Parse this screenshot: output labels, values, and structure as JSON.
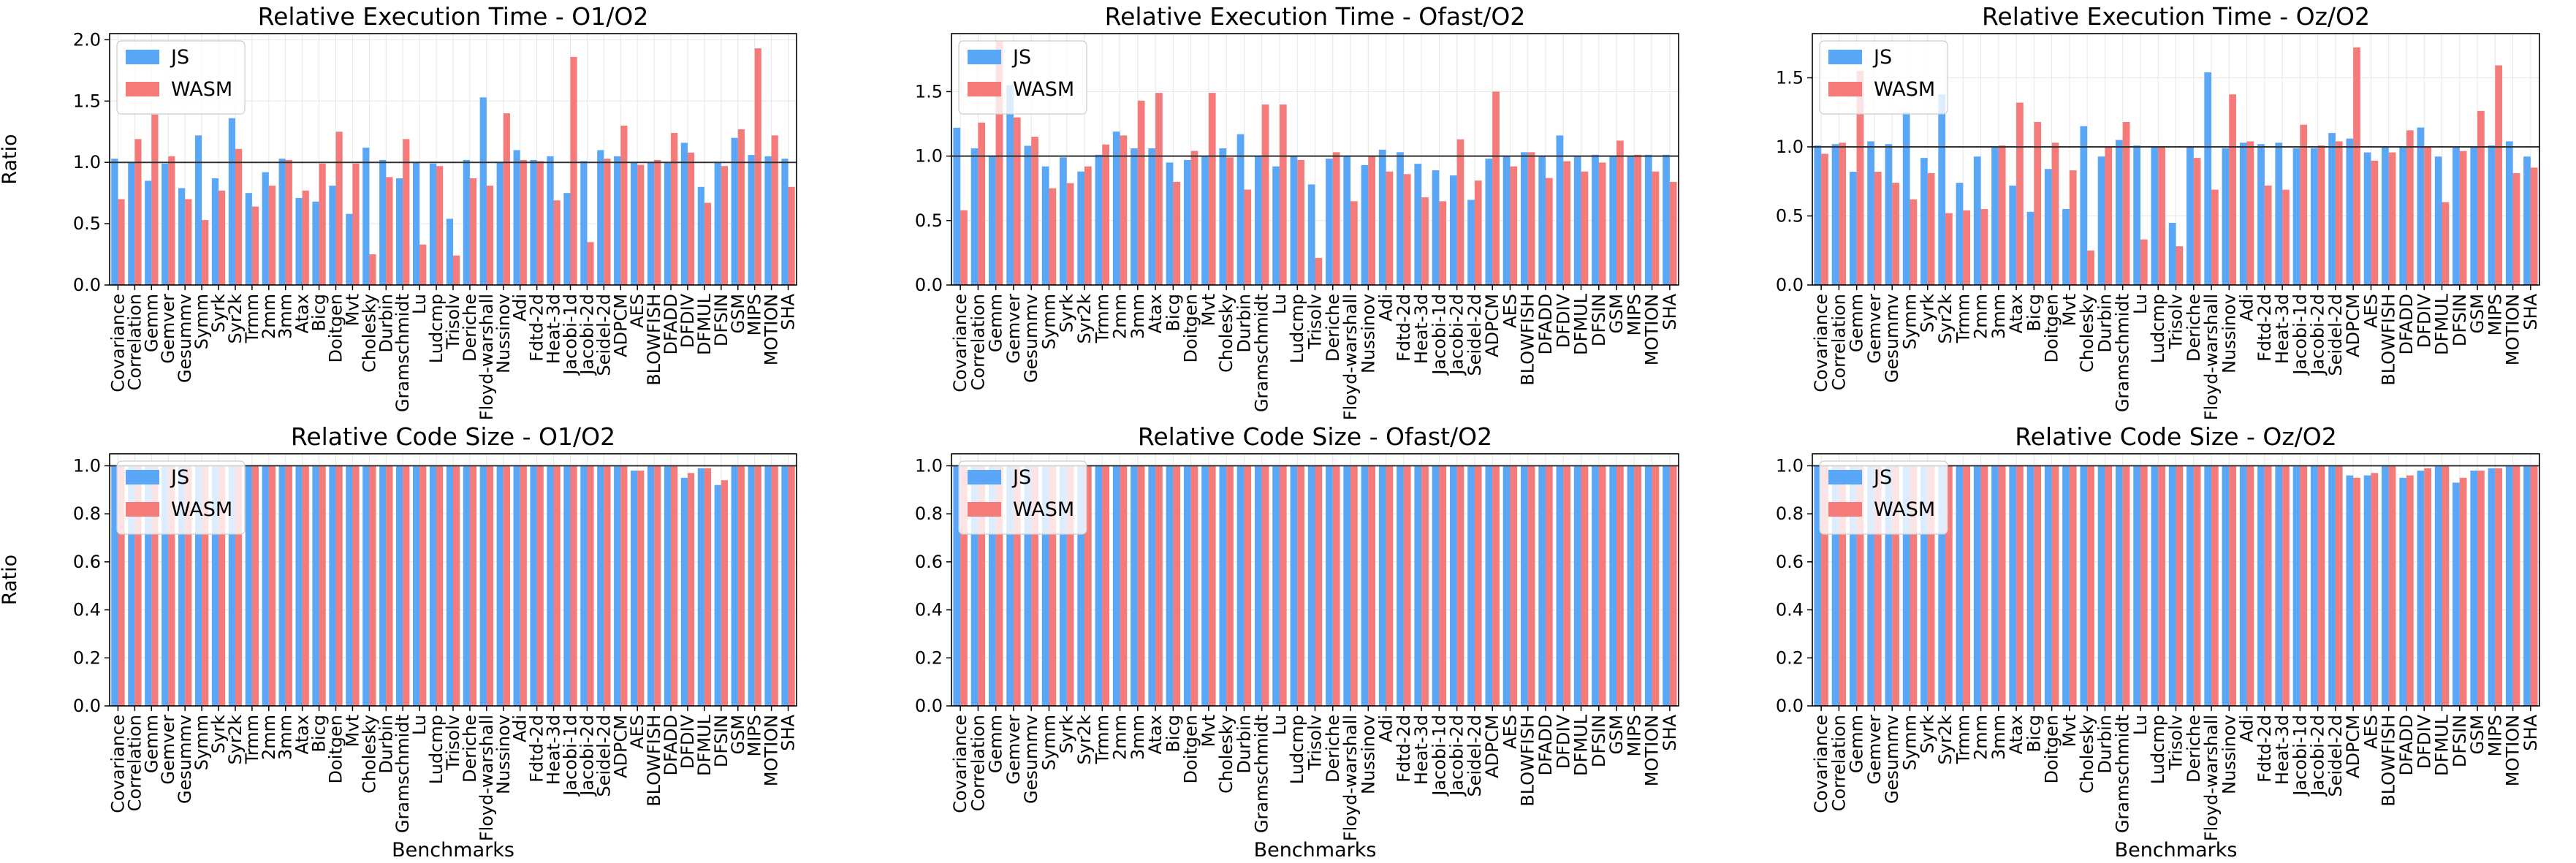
{
  "figure": {
    "ylabel": "Ratio",
    "xlabel": "Benchmarks",
    "legend": [
      "JS",
      "WASM"
    ],
    "colors": {
      "js": "#5aa7f7",
      "wasm": "#f57a7a",
      "reference_line": "#333333",
      "grid": "#e6e6e6"
    }
  },
  "chart_data": [
    {
      "type": "bar",
      "title": "Relative Execution Time - O1/O2",
      "ylim": [
        0,
        2.05
      ],
      "yticks": [
        "0.0",
        "0.5",
        "1.0",
        "1.5",
        "2.0"
      ],
      "ytick_values": [
        0,
        0.5,
        1.0,
        1.5,
        2.0
      ],
      "reference_line": 1.0,
      "grid": true,
      "legend_position": "top-left",
      "show_ylabel": true,
      "show_xlabel": false,
      "categories": [
        "Covariance",
        "Correlation",
        "Gemm",
        "Gemver",
        "Gesummv",
        "Symm",
        "Syrk",
        "Syr2k",
        "Trmm",
        "2mm",
        "3mm",
        "Atax",
        "Bicg",
        "Doitgen",
        "Mvt",
        "Cholesky",
        "Durbin",
        "Gramschmidt",
        "Lu",
        "Ludcmp",
        "Trisolv",
        "Deriche",
        "Floyd-warshall",
        "Nussinov",
        "Adi",
        "Fdtd-2d",
        "Heat-3d",
        "Jacobi-1d",
        "Jacobi-2d",
        "Seidel-2d",
        "ADPCM",
        "AES",
        "BLOWFISH",
        "DFADD",
        "DFDIV",
        "DFMUL",
        "DFSIN",
        "GSM",
        "MIPS",
        "MOTION",
        "SHA"
      ],
      "series": [
        {
          "name": "JS",
          "values": [
            1.03,
            1.0,
            0.85,
            0.99,
            0.79,
            1.22,
            0.87,
            1.36,
            0.75,
            0.92,
            1.03,
            0.71,
            0.68,
            0.81,
            0.58,
            1.12,
            1.02,
            0.87,
            1.0,
            0.99,
            0.54,
            1.02,
            1.53,
            1.0,
            1.1,
            1.02,
            1.05,
            0.75,
            1.01,
            1.1,
            1.05,
            1.0,
            1.0,
            1.0,
            1.16,
            0.8,
            1.0,
            1.2,
            1.06,
            1.05,
            1.03
          ]
        },
        {
          "name": "WASM",
          "values": [
            0.7,
            1.19,
            1.39,
            1.05,
            0.7,
            0.53,
            0.77,
            1.11,
            0.64,
            0.81,
            1.02,
            0.77,
            0.99,
            1.25,
            0.99,
            0.25,
            0.88,
            1.19,
            0.33,
            0.97,
            0.24,
            0.87,
            0.81,
            1.4,
            1.02,
            1.01,
            0.69,
            1.86,
            0.35,
            1.03,
            1.3,
            0.98,
            1.02,
            1.24,
            1.08,
            0.67,
            0.97,
            1.27,
            1.93,
            1.22,
            0.8
          ]
        }
      ]
    },
    {
      "type": "bar",
      "title": "Relative Execution Time - Ofast/O2",
      "ylim": [
        0,
        1.95
      ],
      "yticks": [
        "0.0",
        "0.5",
        "1.0",
        "1.5"
      ],
      "ytick_values": [
        0,
        0.5,
        1.0,
        1.5
      ],
      "reference_line": 1.0,
      "grid": true,
      "legend_position": "top-left",
      "show_ylabel": false,
      "show_xlabel": false,
      "categories": [
        "Covariance",
        "Correlation",
        "Gemm",
        "Gemver",
        "Gesummv",
        "Symm",
        "Syrk",
        "Syr2k",
        "Trmm",
        "2mm",
        "3mm",
        "Atax",
        "Bicg",
        "Doitgen",
        "Mvt",
        "Cholesky",
        "Durbin",
        "Gramschmidt",
        "Lu",
        "Ludcmp",
        "Trisolv",
        "Deriche",
        "Floyd-warshall",
        "Nussinov",
        "Adi",
        "Fdtd-2d",
        "Heat-3d",
        "Jacobi-1d",
        "Jacobi-2d",
        "Seidel-2d",
        "ADPCM",
        "AES",
        "BLOWFISH",
        "DFADD",
        "DFDIV",
        "DFMUL",
        "DFSIN",
        "GSM",
        "MIPS",
        "MOTION",
        "SHA"
      ],
      "series": [
        {
          "name": "JS",
          "values": [
            1.22,
            1.06,
            1.0,
            1.55,
            1.08,
            0.92,
            0.99,
            0.88,
            1.01,
            1.19,
            1.06,
            1.06,
            0.95,
            0.97,
            1.0,
            1.06,
            1.17,
            1.0,
            0.92,
            1.0,
            0.78,
            0.98,
            1.0,
            0.93,
            1.05,
            1.03,
            0.94,
            0.89,
            0.85,
            0.66,
            0.98,
            1.0,
            1.03,
            1.0,
            1.16,
            1.0,
            1.01,
            1.0,
            1.0,
            1.01,
            1.01
          ]
        },
        {
          "name": "WASM",
          "values": [
            0.58,
            1.26,
            1.89,
            1.3,
            1.15,
            0.75,
            0.79,
            0.92,
            1.09,
            1.16,
            1.43,
            1.49,
            0.8,
            1.04,
            1.49,
            0.99,
            0.74,
            1.4,
            1.4,
            0.97,
            0.21,
            1.03,
            0.65,
            1.0,
            0.88,
            0.86,
            0.68,
            0.65,
            1.13,
            0.81,
            1.5,
            0.92,
            1.03,
            0.83,
            0.96,
            0.88,
            0.95,
            1.12,
            1.01,
            0.88,
            0.8
          ]
        }
      ]
    },
    {
      "type": "bar",
      "title": "Relative Execution Time - Oz/O2",
      "ylim": [
        0,
        1.82
      ],
      "yticks": [
        "0.0",
        "0.5",
        "1.0",
        "1.5"
      ],
      "ytick_values": [
        0,
        0.5,
        1.0,
        1.5
      ],
      "reference_line": 1.0,
      "grid": true,
      "legend_position": "top-left",
      "show_ylabel": false,
      "show_xlabel": false,
      "categories": [
        "Covariance",
        "Correlation",
        "Gemm",
        "Gemver",
        "Gesummv",
        "Symm",
        "Syrk",
        "Syr2k",
        "Trmm",
        "2mm",
        "3mm",
        "Atax",
        "Bicg",
        "Doitgen",
        "Mvt",
        "Cholesky",
        "Durbin",
        "Gramschmidt",
        "Lu",
        "Ludcmp",
        "Trisolv",
        "Deriche",
        "Floyd-warshall",
        "Nussinov",
        "Adi",
        "Fdtd-2d",
        "Heat-3d",
        "Jacobi-1d",
        "Jacobi-2d",
        "Seidel-2d",
        "ADPCM",
        "AES",
        "BLOWFISH",
        "DFADD",
        "DFDIV",
        "DFMUL",
        "DFSIN",
        "GSM",
        "MIPS",
        "MOTION",
        "SHA"
      ],
      "series": [
        {
          "name": "JS",
          "values": [
            1.01,
            1.02,
            0.82,
            1.04,
            1.02,
            1.25,
            0.92,
            1.38,
            0.74,
            0.93,
            1.0,
            0.72,
            0.53,
            0.84,
            0.55,
            1.15,
            0.93,
            1.05,
            1.01,
            1.0,
            0.45,
            1.0,
            1.54,
            0.99,
            1.03,
            1.02,
            1.03,
            0.99,
            0.99,
            1.1,
            1.06,
            0.96,
            1.0,
            1.0,
            1.14,
            0.93,
            1.0,
            1.0,
            1.01,
            1.04,
            0.93
          ]
        },
        {
          "name": "WASM",
          "values": [
            0.95,
            1.03,
            1.55,
            0.82,
            0.74,
            0.62,
            0.81,
            0.52,
            0.54,
            0.55,
            1.01,
            1.32,
            1.18,
            1.03,
            0.83,
            0.25,
            1.0,
            1.18,
            0.33,
            1.0,
            0.28,
            0.92,
            0.69,
            1.38,
            1.04,
            0.72,
            0.69,
            1.16,
            1.01,
            1.04,
            1.72,
            0.9,
            0.96,
            1.12,
            1.0,
            0.6,
            0.97,
            1.26,
            1.59,
            0.81,
            0.85
          ]
        }
      ]
    },
    {
      "type": "bar",
      "title": "Relative Code Size - O1/O2",
      "ylim": [
        0,
        1.05
      ],
      "yticks": [
        "0.0",
        "0.2",
        "0.4",
        "0.6",
        "0.8",
        "1.0"
      ],
      "ytick_values": [
        0,
        0.2,
        0.4,
        0.6,
        0.8,
        1.0
      ],
      "reference_line": 1.0,
      "grid": true,
      "legend_position": "top-left",
      "show_ylabel": true,
      "show_xlabel": true,
      "categories": [
        "Covariance",
        "Correlation",
        "Gemm",
        "Gemver",
        "Gesummv",
        "Symm",
        "Syrk",
        "Syr2k",
        "Trmm",
        "2mm",
        "3mm",
        "Atax",
        "Bicg",
        "Doitgen",
        "Mvt",
        "Cholesky",
        "Durbin",
        "Gramschmidt",
        "Lu",
        "Ludcmp",
        "Trisolv",
        "Deriche",
        "Floyd-warshall",
        "Nussinov",
        "Adi",
        "Fdtd-2d",
        "Heat-3d",
        "Jacobi-1d",
        "Jacobi-2d",
        "Seidel-2d",
        "ADPCM",
        "AES",
        "BLOWFISH",
        "DFADD",
        "DFDIV",
        "DFMUL",
        "DFSIN",
        "GSM",
        "MIPS",
        "MOTION",
        "SHA"
      ],
      "series": [
        {
          "name": "JS",
          "values": [
            1.0,
            1.0,
            1.0,
            1.0,
            1.0,
            1.0,
            1.0,
            1.0,
            1.0,
            1.0,
            1.0,
            1.0,
            1.0,
            1.0,
            1.0,
            1.0,
            1.0,
            1.0,
            1.0,
            1.0,
            1.0,
            1.0,
            1.0,
            1.0,
            1.0,
            1.0,
            1.0,
            1.0,
            1.0,
            1.0,
            1.0,
            0.98,
            1.0,
            1.0,
            0.95,
            0.99,
            0.92,
            1.0,
            1.0,
            1.0,
            1.0
          ]
        },
        {
          "name": "WASM",
          "values": [
            1.0,
            1.0,
            1.0,
            1.0,
            1.0,
            1.0,
            1.0,
            1.0,
            1.0,
            1.0,
            1.0,
            1.0,
            1.0,
            1.0,
            1.0,
            1.0,
            1.0,
            1.0,
            1.0,
            1.0,
            1.0,
            1.0,
            1.0,
            1.0,
            1.0,
            1.0,
            1.0,
            1.0,
            1.0,
            1.0,
            1.0,
            0.98,
            1.0,
            1.0,
            0.97,
            0.99,
            0.94,
            1.0,
            1.0,
            1.0,
            1.0
          ]
        }
      ]
    },
    {
      "type": "bar",
      "title": "Relative Code Size - Ofast/O2",
      "ylim": [
        0,
        1.05
      ],
      "yticks": [
        "0.0",
        "0.2",
        "0.4",
        "0.6",
        "0.8",
        "1.0"
      ],
      "ytick_values": [
        0,
        0.2,
        0.4,
        0.6,
        0.8,
        1.0
      ],
      "reference_line": 1.0,
      "grid": true,
      "legend_position": "top-left",
      "show_ylabel": false,
      "show_xlabel": true,
      "categories": [
        "Covariance",
        "Correlation",
        "Gemm",
        "Gemver",
        "Gesummv",
        "Symm",
        "Syrk",
        "Syr2k",
        "Trmm",
        "2mm",
        "3mm",
        "Atax",
        "Bicg",
        "Doitgen",
        "Mvt",
        "Cholesky",
        "Durbin",
        "Gramschmidt",
        "Lu",
        "Ludcmp",
        "Trisolv",
        "Deriche",
        "Floyd-warshall",
        "Nussinov",
        "Adi",
        "Fdtd-2d",
        "Heat-3d",
        "Jacobi-1d",
        "Jacobi-2d",
        "Seidel-2d",
        "ADPCM",
        "AES",
        "BLOWFISH",
        "DFADD",
        "DFDIV",
        "DFMUL",
        "DFSIN",
        "GSM",
        "MIPS",
        "MOTION",
        "SHA"
      ],
      "series": [
        {
          "name": "JS",
          "values": [
            1.0,
            1.0,
            1.0,
            1.0,
            1.0,
            1.0,
            1.0,
            1.0,
            1.0,
            1.0,
            1.0,
            1.0,
            1.0,
            1.0,
            1.0,
            1.0,
            1.0,
            1.0,
            1.0,
            1.0,
            1.0,
            1.0,
            1.0,
            1.0,
            1.0,
            1.0,
            1.0,
            1.0,
            1.0,
            1.0,
            1.0,
            1.0,
            1.0,
            1.0,
            1.0,
            1.0,
            1.0,
            1.0,
            1.0,
            1.0,
            1.0
          ]
        },
        {
          "name": "WASM",
          "values": [
            1.0,
            1.0,
            1.0,
            1.0,
            1.0,
            1.0,
            1.0,
            1.0,
            1.0,
            1.0,
            1.0,
            1.0,
            1.0,
            1.0,
            1.0,
            1.0,
            1.0,
            1.0,
            1.0,
            1.0,
            1.0,
            1.0,
            1.0,
            1.0,
            1.0,
            1.0,
            1.0,
            1.0,
            1.0,
            1.0,
            1.0,
            1.0,
            1.0,
            1.0,
            1.0,
            1.0,
            1.0,
            1.0,
            1.0,
            1.0,
            1.0
          ]
        }
      ]
    },
    {
      "type": "bar",
      "title": "Relative Code Size - Oz/O2",
      "ylim": [
        0,
        1.05
      ],
      "yticks": [
        "0.0",
        "0.2",
        "0.4",
        "0.6",
        "0.8",
        "1.0"
      ],
      "ytick_values": [
        0,
        0.2,
        0.4,
        0.6,
        0.8,
        1.0
      ],
      "reference_line": 1.0,
      "grid": true,
      "legend_position": "top-left",
      "show_ylabel": false,
      "show_xlabel": true,
      "categories": [
        "Covariance",
        "Correlation",
        "Gemm",
        "Gemver",
        "Gesummv",
        "Symm",
        "Syrk",
        "Syr2k",
        "Trmm",
        "2mm",
        "3mm",
        "Atax",
        "Bicg",
        "Doitgen",
        "Mvt",
        "Cholesky",
        "Durbin",
        "Gramschmidt",
        "Lu",
        "Ludcmp",
        "Trisolv",
        "Deriche",
        "Floyd-warshall",
        "Nussinov",
        "Adi",
        "Fdtd-2d",
        "Heat-3d",
        "Jacobi-1d",
        "Jacobi-2d",
        "Seidel-2d",
        "ADPCM",
        "AES",
        "BLOWFISH",
        "DFADD",
        "DFDIV",
        "DFMUL",
        "DFSIN",
        "GSM",
        "MIPS",
        "MOTION",
        "SHA"
      ],
      "series": [
        {
          "name": "JS",
          "values": [
            1.0,
            1.0,
            1.0,
            1.0,
            1.0,
            1.0,
            1.0,
            1.0,
            1.0,
            1.0,
            1.0,
            1.0,
            1.0,
            1.0,
            1.0,
            1.0,
            1.0,
            1.0,
            1.0,
            1.0,
            1.0,
            1.0,
            1.0,
            1.0,
            1.0,
            1.0,
            1.0,
            1.0,
            1.0,
            1.0,
            0.96,
            0.96,
            1.0,
            0.95,
            0.98,
            1.0,
            0.93,
            0.98,
            0.99,
            1.0,
            1.0
          ]
        },
        {
          "name": "WASM",
          "values": [
            1.0,
            1.0,
            1.0,
            1.0,
            1.0,
            1.0,
            1.0,
            1.0,
            1.0,
            1.0,
            1.0,
            1.0,
            1.0,
            1.0,
            1.0,
            1.0,
            1.0,
            1.0,
            1.0,
            1.0,
            1.0,
            1.0,
            1.0,
            1.0,
            1.0,
            1.0,
            1.0,
            1.0,
            1.0,
            1.0,
            0.95,
            0.97,
            1.0,
            0.96,
            0.99,
            1.0,
            0.95,
            0.98,
            0.99,
            1.0,
            1.0
          ]
        }
      ]
    }
  ]
}
